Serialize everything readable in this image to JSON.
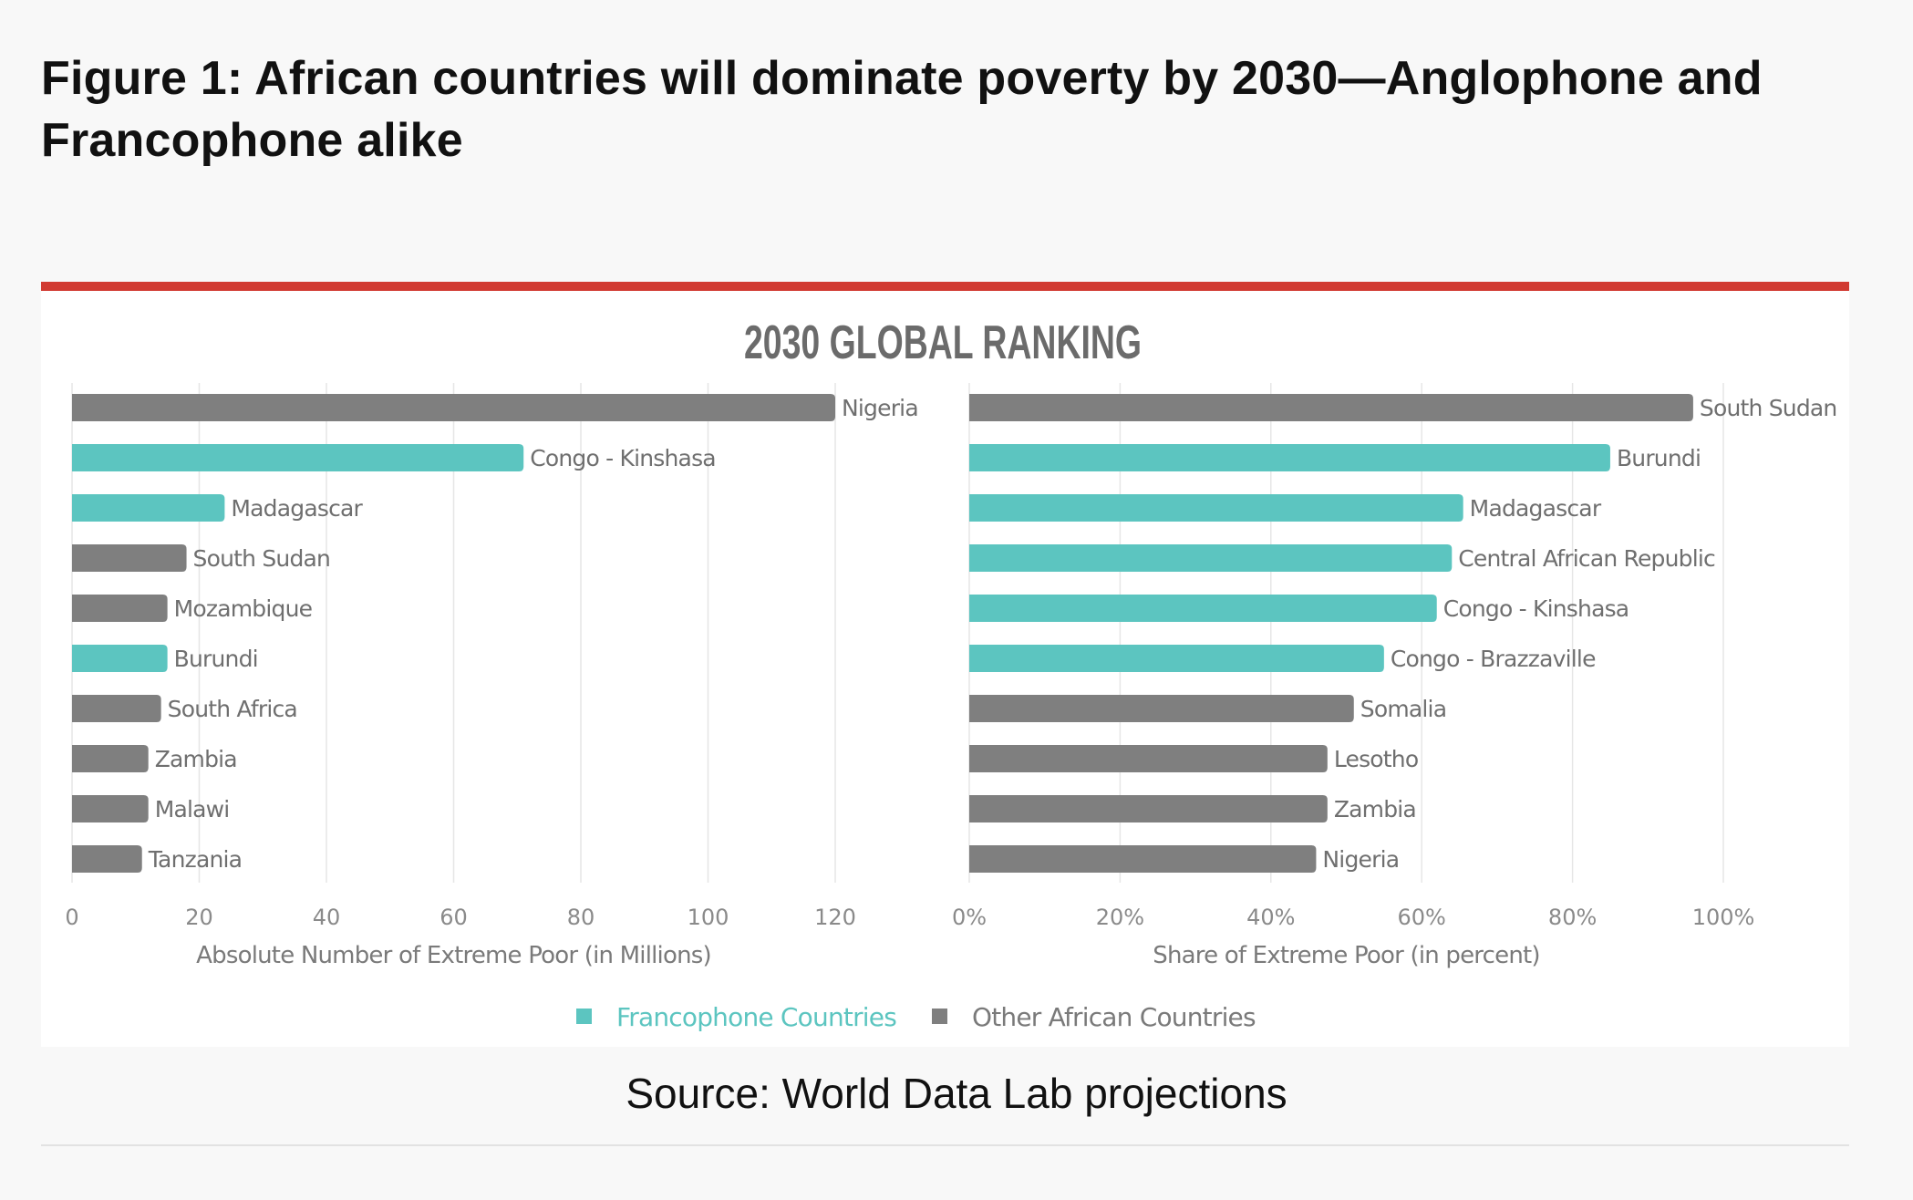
{
  "figure_title": "Figure 1: African countries will dominate poverty by 2030—Anglophone and Francophone alike",
  "source": "Source: World Data Lab projections",
  "colors": {
    "francophone": "#5cc5c0",
    "other": "#7f7f7f",
    "accent_rule": "#d13a31"
  },
  "chart_data": [
    {
      "type": "bar",
      "orientation": "horizontal",
      "title": "2030 GLOBAL RANKING",
      "xlabel": "Absolute Number of Extreme Poor (in Millions)",
      "xlim": [
        0,
        120
      ],
      "xticks": [
        "0",
        "20",
        "40",
        "60",
        "80",
        "100",
        "120"
      ],
      "grid": true,
      "categories": [
        "Nigeria",
        "Congo - Kinshasa",
        "Madagascar",
        "South Sudan",
        "Mozambique",
        "Burundi",
        "South Africa",
        "Zambia",
        "Malawi",
        "Tanzania"
      ],
      "values": [
        120,
        71,
        24,
        18,
        15,
        15,
        14,
        12,
        12,
        11
      ],
      "groups": [
        "other",
        "francophone",
        "francophone",
        "other",
        "other",
        "francophone",
        "other",
        "other",
        "other",
        "other"
      ]
    },
    {
      "type": "bar",
      "orientation": "horizontal",
      "xlabel": "Share of Extreme Poor (in percent)",
      "xlim": [
        0,
        100
      ],
      "xticks": [
        "0%",
        "20%",
        "40%",
        "60%",
        "80%",
        "100%"
      ],
      "grid": true,
      "categories": [
        "South Sudan",
        "Burundi",
        "Madagascar",
        "Central African Republic",
        "Congo - Kinshasa",
        "Congo - Brazzaville",
        "Somalia",
        "Lesotho",
        "Zambia",
        "Nigeria"
      ],
      "values": [
        96,
        85,
        65.5,
        64,
        62,
        55,
        51,
        47.5,
        47.5,
        46
      ],
      "groups": [
        "other",
        "francophone",
        "francophone",
        "francophone",
        "francophone",
        "francophone",
        "other",
        "other",
        "other",
        "other"
      ]
    }
  ],
  "legend": {
    "placement": "bottom-center",
    "items": [
      {
        "label": "Francophone Countries",
        "group": "francophone"
      },
      {
        "label": "Other African Countries",
        "group": "other"
      }
    ]
  }
}
